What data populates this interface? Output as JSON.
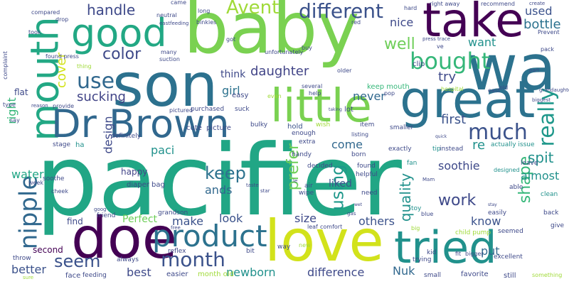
{
  "words": [
    {
      "text": "pacifier",
      "color": "#21a685"
    },
    {
      "text": "baby",
      "color": "#7ad151"
    },
    {
      "text": "son",
      "color": "#2c718e"
    },
    {
      "text": "wa",
      "color": "#2c728e"
    },
    {
      "text": "take",
      "color": "#440154"
    },
    {
      "text": "good",
      "color": "#22a884"
    },
    {
      "text": "great",
      "color": "#2c728e"
    },
    {
      "text": "mouth",
      "color": "#22a884"
    },
    {
      "text": "Dr Brown",
      "color": "#31688e"
    },
    {
      "text": "little",
      "color": "#7ad151"
    },
    {
      "text": "doe",
      "color": "#440154"
    },
    {
      "text": "love",
      "color": "#d2e21b"
    },
    {
      "text": "tried",
      "color": "#21918c"
    },
    {
      "text": "product",
      "color": "#2c728e"
    },
    {
      "text": "nipple",
      "color": "#31688e"
    },
    {
      "text": "bought",
      "color": "#35b779"
    },
    {
      "text": "different",
      "color": "#3b528b"
    },
    {
      "text": "Avent",
      "color": "#a0da39"
    },
    {
      "text": "much",
      "color": "#3b528b"
    },
    {
      "text": "really",
      "color": "#1f988b"
    },
    {
      "text": "use",
      "color": "#31688e"
    },
    {
      "text": "month",
      "color": "#3b528b"
    },
    {
      "text": "seem",
      "color": "#3b528b"
    },
    {
      "text": "prefer",
      "color": "#6ece58"
    },
    {
      "text": "keep",
      "color": "#2c728e"
    },
    {
      "text": "handle",
      "color": "#3e4989"
    },
    {
      "text": "color",
      "color": "#3e4989"
    },
    {
      "text": "well",
      "color": "#6ece58"
    },
    {
      "text": "using",
      "color": "#1f988b"
    },
    {
      "text": "work",
      "color": "#3e4989"
    },
    {
      "text": "shape",
      "color": "#35b779"
    },
    {
      "text": "quality",
      "color": "#21918c"
    },
    {
      "text": "want",
      "color": "#21918c"
    },
    {
      "text": "used",
      "color": "#3b528b"
    },
    {
      "text": "bottle",
      "color": "#2c728e"
    },
    {
      "text": "spit",
      "color": "#21918c"
    },
    {
      "text": "nice",
      "color": "#3e4989"
    },
    {
      "text": "try",
      "color": "#3e4989"
    },
    {
      "text": "first",
      "color": "#3b528b"
    },
    {
      "text": "soothie",
      "color": "#3e4989"
    },
    {
      "text": "almost",
      "color": "#21918c"
    },
    {
      "text": "daughter",
      "color": "#414487"
    },
    {
      "text": "sucking",
      "color": "#414487"
    },
    {
      "text": "girl",
      "color": "#2c728e"
    },
    {
      "text": "cover",
      "color": "#d2e21b"
    },
    {
      "text": "right",
      "color": "#35b779"
    },
    {
      "text": "design",
      "color": "#3e4989"
    },
    {
      "text": "paci",
      "color": "#21918c"
    },
    {
      "text": "re",
      "color": "#21918c"
    },
    {
      "text": "come",
      "color": "#31688e"
    },
    {
      "text": "ands",
      "color": "#31688e"
    },
    {
      "text": "water",
      "color": "#21a685"
    },
    {
      "text": "make",
      "color": "#3b528b"
    },
    {
      "text": "look",
      "color": "#3b528b"
    },
    {
      "text": "size",
      "color": "#3e4989"
    },
    {
      "text": "others",
      "color": "#3b528b"
    },
    {
      "text": "know",
      "color": "#3b528b"
    },
    {
      "text": "put",
      "color": "#31688e"
    },
    {
      "text": "Perfect",
      "color": "#6ece58"
    },
    {
      "text": "better",
      "color": "#3b528b"
    },
    {
      "text": "best",
      "color": "#3e4989"
    },
    {
      "text": "newborn",
      "color": "#21918c"
    },
    {
      "text": "difference",
      "color": "#3e4989"
    },
    {
      "text": "Nuk",
      "color": "#31688e"
    },
    {
      "text": "never",
      "color": "#31688e"
    },
    {
      "text": "liked",
      "color": "#3b528b"
    },
    {
      "text": "think",
      "color": "#3e4989"
    },
    {
      "text": "flat",
      "color": "#3e4989"
    },
    {
      "text": "find",
      "color": "#3e4989"
    },
    {
      "text": "happy",
      "color": "#414487"
    },
    {
      "text": "second",
      "color": "#440154"
    },
    {
      "text": "face",
      "color": "#3e4989"
    },
    {
      "text": "easier",
      "color": "#3e4989"
    },
    {
      "text": "month old",
      "color": "#a0da39"
    },
    {
      "text": "picture",
      "color": "#3e4989"
    },
    {
      "text": "cute",
      "color": "#3e4989"
    },
    {
      "text": "easy",
      "color": "#3e4989"
    },
    {
      "text": "lot",
      "color": "#3e4989"
    },
    {
      "text": "hold",
      "color": "#3b528b"
    },
    {
      "text": "ha",
      "color": "#21918c"
    },
    {
      "text": "clip",
      "color": "#3e4989"
    },
    {
      "text": "keep mouth",
      "color": "#35b779"
    },
    {
      "text": "favorite",
      "color": "#3e4989"
    },
    {
      "text": "still",
      "color": "#3e4989"
    },
    {
      "text": "small",
      "color": "#3e4989"
    },
    {
      "text": "excellent",
      "color": "#3e4989"
    },
    {
      "text": "feeding",
      "color": "#3e4989"
    },
    {
      "text": "diaper bag",
      "color": "#3e4989"
    },
    {
      "text": "definitely",
      "color": "#3e4989"
    },
    {
      "text": "stage",
      "color": "#3e4989"
    },
    {
      "text": "purchased",
      "color": "#3e4989"
    },
    {
      "text": "suck",
      "color": "#3e4989"
    },
    {
      "text": "fan",
      "color": "#21918c"
    },
    {
      "text": "tip",
      "color": "#21918c"
    },
    {
      "text": "toy",
      "color": "#21918c"
    },
    {
      "text": "actually issue",
      "color": "#21918c"
    },
    {
      "text": "clean",
      "color": "#21918c"
    },
    {
      "text": "grandson",
      "color": "#3e4989"
    },
    {
      "text": "friend",
      "color": "#3e4989"
    },
    {
      "text": "way",
      "color": "#3e4989"
    },
    {
      "text": "need",
      "color": "#3e4989"
    },
    {
      "text": "helpful",
      "color": "#3e4989"
    },
    {
      "text": "reflex",
      "color": "#3e4989"
    },
    {
      "text": "always",
      "color": "#3e4989"
    },
    {
      "text": "bit",
      "color": "#3e4989"
    },
    {
      "text": "trying",
      "color": "#3e4989"
    },
    {
      "text": "child pump",
      "color": "#a0da39"
    },
    {
      "text": "seemed",
      "color": "#3e4989"
    },
    {
      "text": "back",
      "color": "#3e4989"
    },
    {
      "text": "give",
      "color": "#3e4989"
    },
    {
      "text": "something",
      "color": "#a0da39"
    },
    {
      "text": "throw",
      "color": "#3e4989"
    },
    {
      "text": "soothe",
      "color": "#3e4989"
    },
    {
      "text": "easily",
      "color": "#3e4989"
    },
    {
      "text": "able",
      "color": "#3e4989"
    },
    {
      "text": "leave",
      "color": "#3e4989"
    },
    {
      "text": "designed",
      "color": "#21918c"
    },
    {
      "text": "exactly",
      "color": "#3e4989"
    },
    {
      "text": "instead",
      "color": "#3e4989"
    },
    {
      "text": "air",
      "color": "#3e4989"
    },
    {
      "text": "wipe",
      "color": "#3e4989"
    },
    {
      "text": "born",
      "color": "#3e4989"
    },
    {
      "text": "found",
      "color": "#3e4989"
    },
    {
      "text": "decided",
      "color": "#3e4989"
    },
    {
      "text": "handy",
      "color": "#3e4989"
    },
    {
      "text": "extra",
      "color": "#3e4989"
    },
    {
      "text": "enough",
      "color": "#3e4989"
    },
    {
      "text": "listing",
      "color": "#3e4989"
    },
    {
      "text": "item",
      "color": "#3e4989"
    },
    {
      "text": "smaller",
      "color": "#3e4989"
    },
    {
      "text": "wish",
      "color": "#a0da39"
    },
    {
      "text": "bulky",
      "color": "#3e4989"
    },
    {
      "text": "kid",
      "color": "#3e4989"
    },
    {
      "text": "fit",
      "color": "#3e4989"
    },
    {
      "text": "bigger",
      "color": "#3e4989"
    },
    {
      "text": "comfort",
      "color": "#3e4989"
    },
    {
      "text": "leaf",
      "color": "#3e4989"
    },
    {
      "text": "new",
      "color": "#a0da39"
    },
    {
      "text": "pop",
      "color": "#3e4989"
    },
    {
      "text": "east",
      "color": "#3e4989"
    },
    {
      "text": "old",
      "color": "#3e4989"
    },
    {
      "text": "hospital",
      "color": "#a0da39"
    },
    {
      "text": "several",
      "color": "#3e4989"
    },
    {
      "text": "help",
      "color": "#3e4989"
    },
    {
      "text": "even",
      "color": "#a0da39"
    },
    {
      "text": "older",
      "color": "#3e4989"
    },
    {
      "text": "unfortunately",
      "color": "#3e4989"
    },
    {
      "text": "buy",
      "color": "#3e4989"
    },
    {
      "text": "got",
      "color": "#3e4989"
    },
    {
      "text": "long",
      "color": "#3e4989"
    },
    {
      "text": "came",
      "color": "#3e4989"
    },
    {
      "text": "neutral",
      "color": "#3e4989"
    },
    {
      "text": "binkies",
      "color": "#3e4989"
    },
    {
      "text": "suction",
      "color": "#3e4989"
    },
    {
      "text": "many",
      "color": "#3e4989"
    },
    {
      "text": "thing",
      "color": "#a0da39"
    },
    {
      "text": "compared",
      "color": "#3e4989"
    },
    {
      "text": "drop",
      "color": "#3e4989"
    },
    {
      "text": "took",
      "color": "#3e4989"
    },
    {
      "text": "complaint",
      "color": "#3e4989"
    },
    {
      "text": "found press",
      "color": "#3e4989"
    },
    {
      "text": "provide",
      "color": "#3e4989"
    },
    {
      "text": "reason",
      "color": "#3e4989"
    },
    {
      "text": "type",
      "color": "#3e4989"
    },
    {
      "text": "say",
      "color": "#3e4989"
    },
    {
      "text": "week",
      "color": "#3e4989"
    },
    {
      "text": "cheek",
      "color": "#3e4989"
    },
    {
      "text": "pictured",
      "color": "#3e4989"
    },
    {
      "text": "red",
      "color": "#3e4989"
    },
    {
      "text": "hard",
      "color": "#3e4989"
    },
    {
      "text": "right away",
      "color": "#3e4989"
    },
    {
      "text": "recommend",
      "color": "#3e4989"
    },
    {
      "text": "create",
      "color": "#3e4989"
    },
    {
      "text": "Prevent",
      "color": "#3e4989"
    },
    {
      "text": "pack",
      "color": "#3e4989"
    },
    {
      "text": "press trace",
      "color": "#3e4989"
    },
    {
      "text": "part",
      "color": "#3e4989"
    },
    {
      "text": "ve",
      "color": "#3e4989"
    },
    {
      "text": "biggest",
      "color": "#3e4989"
    },
    {
      "text": "grandaughter",
      "color": "#3e4989"
    },
    {
      "text": "eastfeeding",
      "color": "#3e4989"
    },
    {
      "text": "goog",
      "color": "#3e4989"
    },
    {
      "text": "taking",
      "color": "#3e4989"
    },
    {
      "text": "le",
      "color": "#3e4989"
    },
    {
      "text": "star",
      "color": "#3e4989"
    },
    {
      "text": "Mam",
      "color": "#3e4989"
    },
    {
      "text": "blue",
      "color": "#3e4989"
    },
    {
      "text": "big",
      "color": "#a0da39"
    },
    {
      "text": "free",
      "color": "#3e4989"
    },
    {
      "text": "taste",
      "color": "#3e4989"
    },
    {
      "text": "gas",
      "color": "#3e4989"
    },
    {
      "text": "stay",
      "color": "#3e4989"
    },
    {
      "text": "quick",
      "color": "#3e4989"
    },
    {
      "text": "wet",
      "color": "#3e4989"
    },
    {
      "text": "sure",
      "color": "#3e4989"
    }
  ]
}
